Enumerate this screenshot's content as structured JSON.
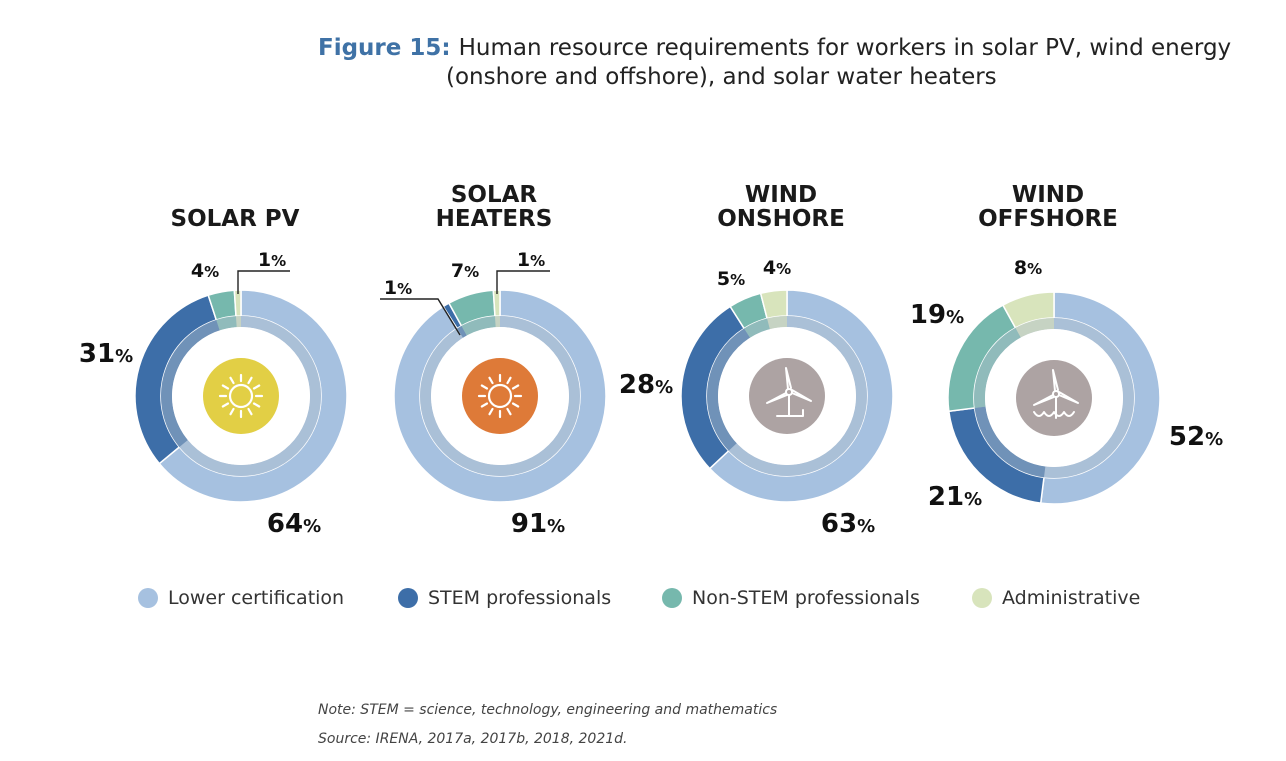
{
  "title": {
    "figure_label": "Figure 15:",
    "line1": "Human resource requirements for workers in solar PV, wind energy",
    "line2": "(onshore and offshore), and solar water heaters"
  },
  "colors": {
    "lower_certification": "#a6c1e0",
    "stem": "#3d6ea8",
    "non_stem": "#76b8ad",
    "administrative": "#d8e4bc",
    "inner_ring": "#8ea2b8",
    "solar_pv_icon": "#e2cf45",
    "solar_heater_icon": "#de7a38",
    "wind_icon": "#ada3a3"
  },
  "legend": [
    {
      "label": "Lower certification",
      "color": "#a6c1e0"
    },
    {
      "label": "STEM professionals",
      "color": "#3d6ea8"
    },
    {
      "label": "Non-STEM professionals",
      "color": "#76b8ad"
    },
    {
      "label": "Administrative",
      "color": "#d8e4bc"
    }
  ],
  "chart_data": [
    {
      "type": "pie",
      "title": "SOLAR PV",
      "icon": "sun-icon",
      "categories": [
        "Lower certification",
        "STEM professionals",
        "Non-STEM professionals",
        "Administrative"
      ],
      "values": [
        64,
        31,
        4,
        1
      ],
      "labels": [
        "64%",
        "31%",
        "4%",
        "1%"
      ]
    },
    {
      "type": "pie",
      "title": "SOLAR HEATERS",
      "icon": "sun-icon",
      "categories": [
        "Lower certification",
        "STEM professionals",
        "Non-STEM professionals",
        "Administrative"
      ],
      "values": [
        91,
        1,
        7,
        1
      ],
      "labels": [
        "91%",
        "1%",
        "7%",
        "1%"
      ]
    },
    {
      "type": "pie",
      "title": "WIND ONSHORE",
      "icon": "wind-turbine-icon",
      "categories": [
        "Lower certification",
        "STEM professionals",
        "Non-STEM professionals",
        "Administrative"
      ],
      "values": [
        63,
        28,
        5,
        4
      ],
      "labels": [
        "63%",
        "28%",
        "5%",
        "4%"
      ]
    },
    {
      "type": "pie",
      "title": "WIND OFFSHORE",
      "icon": "offshore-wind-turbine-icon",
      "categories": [
        "Lower certification",
        "STEM professionals",
        "Non-STEM professionals",
        "Administrative"
      ],
      "values": [
        52,
        21,
        19,
        8
      ],
      "labels": [
        "52%",
        "21%",
        "19%",
        "8%"
      ]
    }
  ],
  "notes": {
    "note": "Note: STEM = science, technology, engineering and mathematics",
    "source": "Source: IRENA, 2017a, 2017b, 2018, 2021d."
  }
}
